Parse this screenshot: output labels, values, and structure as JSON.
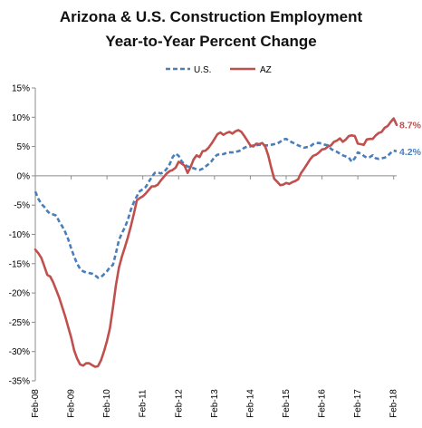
{
  "chart_data": {
    "type": "line",
    "title": "Arizona & U.S. Construction Employment",
    "subtitle": "Year-to-Year Percent Change",
    "xlabel": "",
    "ylabel": "",
    "ylim": [
      -35,
      15
    ],
    "y_ticks": [
      "15%",
      "10%",
      "5%",
      "0%",
      "-5%",
      "-10%",
      "-15%",
      "-20%",
      "-25%",
      "-30%",
      "-35%"
    ],
    "x_ticks": [
      "Feb-08",
      "Feb-09",
      "Feb-10",
      "Feb-11",
      "Feb-12",
      "Feb-13",
      "Feb-14",
      "Feb-15",
      "Feb-16",
      "Feb-17",
      "Feb-18"
    ],
    "grid": false,
    "legend_position": "top-center",
    "series": [
      {
        "name": "U.S.",
        "color": "#4a7ebb",
        "style": "dashed",
        "end_label": "4.2%",
        "values": [
          -2.7,
          -3.9,
          -4.8,
          -5.3,
          -6.0,
          -6.5,
          -6.6,
          -6.8,
          -7.8,
          -8.6,
          -9.6,
          -10.8,
          -12.4,
          -13.8,
          -15.0,
          -15.9,
          -16.3,
          -16.5,
          -16.6,
          -16.7,
          -17.0,
          -17.4,
          -17.3,
          -16.8,
          -16.3,
          -15.6,
          -15.2,
          -13.2,
          -11.0,
          -9.8,
          -8.8,
          -7.5,
          -5.8,
          -4.5,
          -3.5,
          -2.6,
          -2.3,
          -1.9,
          -1.0,
          -0.2,
          0.5,
          0.6,
          0.4,
          0.6,
          1.2,
          2.0,
          3.2,
          3.8,
          3.4,
          2.5,
          1.9,
          1.6,
          1.5,
          1.3,
          1.1,
          1.0,
          1.2,
          1.6,
          2.0,
          2.5,
          3.2,
          3.6,
          3.7,
          3.7,
          3.9,
          4.0,
          4.0,
          4.1,
          4.2,
          4.4,
          4.8,
          5.0,
          5.0,
          5.2,
          5.2,
          5.3,
          5.3,
          5.2,
          5.2,
          5.3,
          5.4,
          5.5,
          5.8,
          6.2,
          6.3,
          6.0,
          5.7,
          5.5,
          5.2,
          5.0,
          4.8,
          4.9,
          5.0,
          5.4,
          5.6,
          5.6,
          5.5,
          5.3,
          5.2,
          4.6,
          4.3,
          4.1,
          3.8,
          3.5,
          3.3,
          3.1,
          2.4,
          3.0,
          4.0,
          3.8,
          3.4,
          3.1,
          3.2,
          3.5,
          3.0,
          2.9,
          3.0,
          3.1,
          3.4,
          3.9,
          4.3,
          4.2
        ]
      },
      {
        "name": "AZ",
        "color": "#c0504d",
        "style": "solid",
        "end_label": "8.7%",
        "values": [
          -12.6,
          -13.2,
          -14.0,
          -15.4,
          -16.9,
          -17.2,
          -18.2,
          -19.5,
          -20.8,
          -22.4,
          -24.0,
          -25.8,
          -27.6,
          -29.8,
          -31.2,
          -32.2,
          -32.4,
          -32.0,
          -32.0,
          -32.3,
          -32.6,
          -32.5,
          -31.5,
          -30.0,
          -28.2,
          -26.0,
          -22.5,
          -18.7,
          -15.7,
          -13.8,
          -12.2,
          -10.5,
          -8.6,
          -6.5,
          -4.2,
          -3.8,
          -3.5,
          -3.0,
          -2.4,
          -1.8,
          -1.8,
          -1.5,
          -0.8,
          -0.2,
          0.4,
          0.8,
          1.0,
          1.4,
          2.4,
          2.1,
          1.7,
          0.5,
          1.5,
          2.8,
          3.5,
          3.2,
          4.2,
          4.3,
          4.8,
          5.5,
          6.3,
          7.1,
          7.4,
          7.0,
          7.3,
          7.5,
          7.2,
          7.6,
          7.8,
          7.5,
          6.8,
          6.0,
          5.2,
          5.0,
          5.5,
          5.4,
          5.6,
          5.0,
          3.5,
          1.4,
          -0.5,
          -1.0,
          -1.6,
          -1.5,
          -1.2,
          -1.4,
          -1.1,
          -0.9,
          -0.6,
          0.5,
          1.2,
          2.0,
          2.8,
          3.4,
          3.6,
          4.0,
          4.5,
          4.6,
          5.0,
          5.2,
          5.8,
          6.0,
          6.4,
          5.8,
          6.2,
          6.8,
          6.9,
          6.8,
          5.5,
          5.4,
          5.3,
          6.2,
          6.3,
          6.3,
          6.9,
          7.3,
          7.5,
          8.2,
          8.5,
          9.2,
          9.8,
          8.7
        ]
      }
    ]
  }
}
